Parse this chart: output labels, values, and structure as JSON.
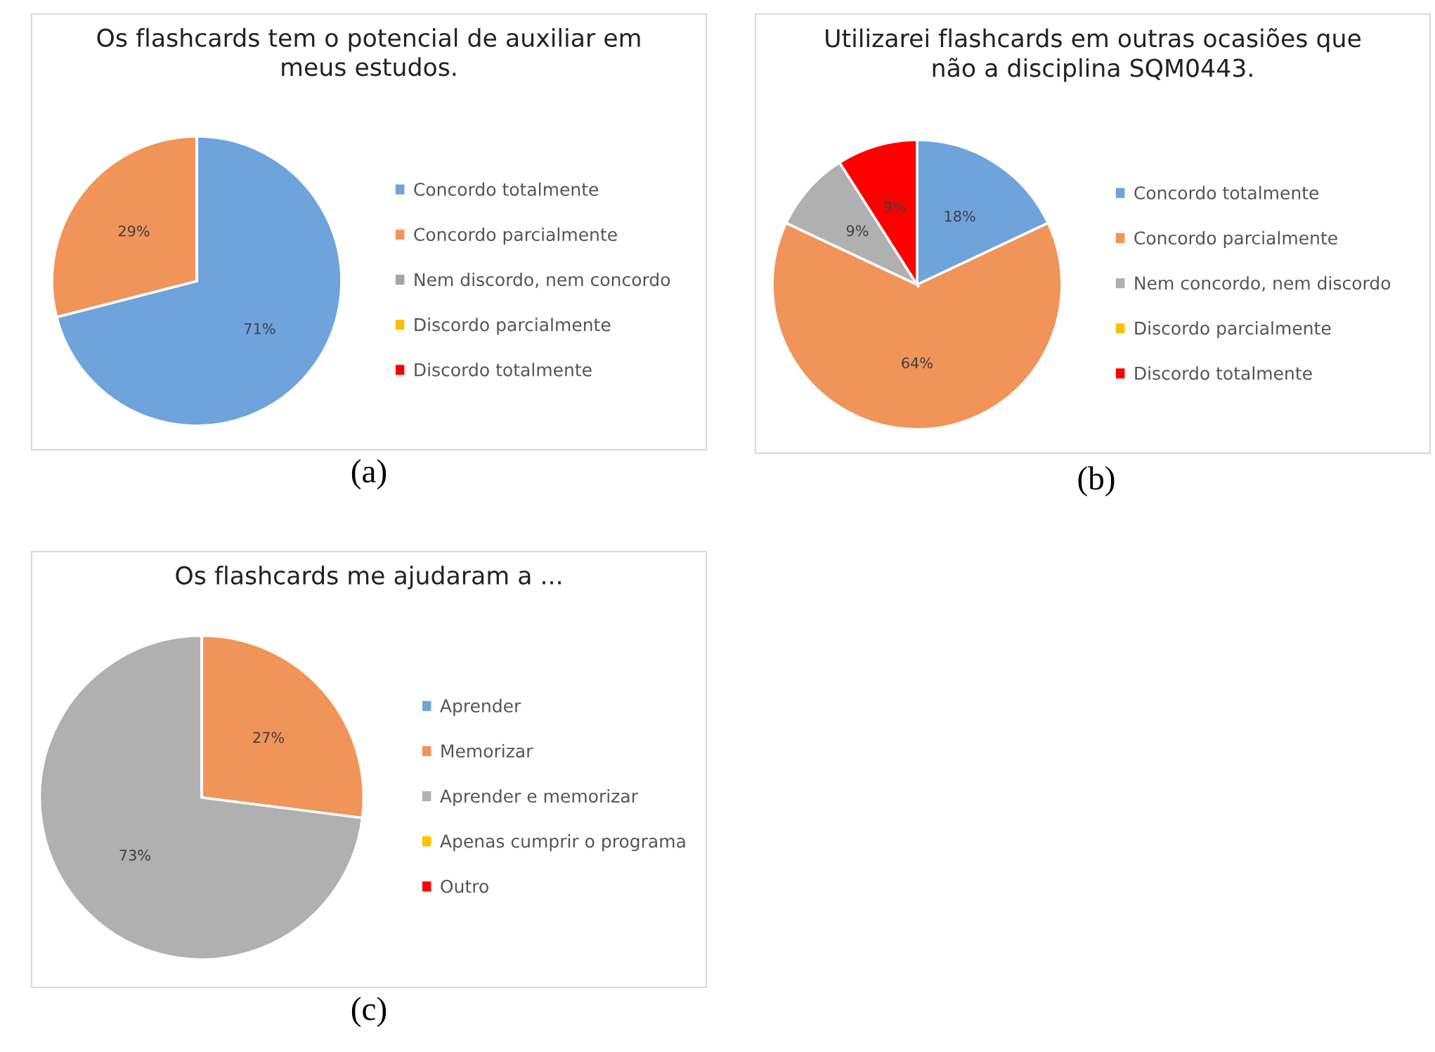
{
  "chart_data": [
    {
      "type": "pie",
      "title": "Os flashcards tem o potencial de auxiliar em meus estudos.",
      "categories": [
        "Concordo totalmente",
        "Concordo parcialmente",
        "Nem discordo, nem concordo",
        "Discordo parcialmente",
        "Discordo totalmente"
      ],
      "values": [
        71,
        29,
        0,
        0,
        0
      ],
      "value_labels": [
        "71%",
        "29%",
        null,
        null,
        null
      ],
      "colors": [
        "#6fa3dc",
        "#f0945a",
        "#a5a5a5",
        "#ffc000",
        "#ff0000"
      ],
      "legend": "right",
      "annotations": [
        "(a)"
      ]
    },
    {
      "type": "pie",
      "title": "Utilizarei flashcards em outras ocasiões que não a disciplina SQM0443.",
      "categories": [
        "Concordo totalmente",
        "Concordo parcialmente",
        "Nem concordo, nem discordo",
        "Discordo parcialmente",
        "Discordo totalmente"
      ],
      "values": [
        18,
        64,
        9,
        0,
        9
      ],
      "value_labels": [
        "18%",
        "64%",
        "9%",
        null,
        "9%"
      ],
      "colors": [
        "#6fa3dc",
        "#f0945a",
        "#b0b0b0",
        "#ffc000",
        "#ff0000"
      ],
      "legend": "right",
      "annotations": [
        "(b)"
      ]
    },
    {
      "type": "pie",
      "title": "Os flashcards me ajudaram a ...",
      "categories": [
        "Aprender",
        "Memorizar",
        "Aprender e memorizar",
        "Apenas cumprir o programa",
        "Outro"
      ],
      "values": [
        0,
        27,
        73,
        0,
        0
      ],
      "value_labels": [
        null,
        "27%",
        "73%",
        null,
        null
      ],
      "colors": [
        "#6fa3dc",
        "#f0945a",
        "#b0b0b0",
        "#ffc000",
        "#ff0000"
      ],
      "legend": "right",
      "annotations": [
        "(c)"
      ]
    }
  ]
}
